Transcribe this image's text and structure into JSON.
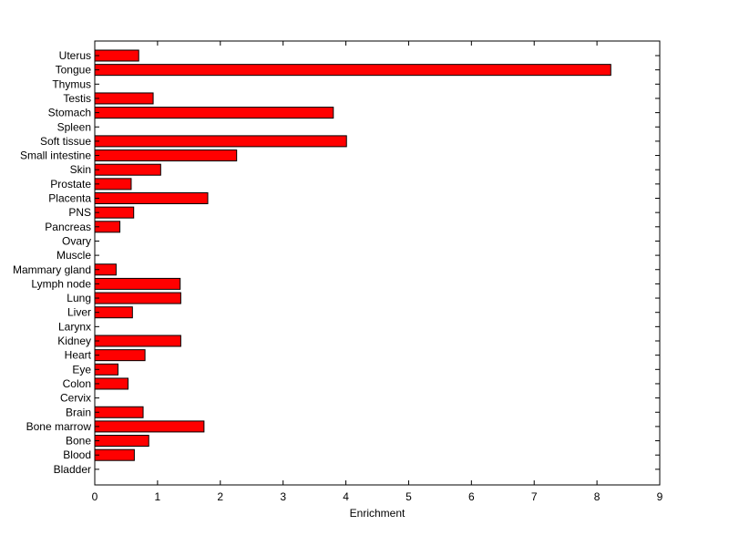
{
  "chart_data": {
    "type": "bar",
    "orientation": "horizontal",
    "title": "",
    "xlabel": "Enrichment",
    "ylabel": "",
    "xlim": [
      0,
      9
    ],
    "xticks": [
      0,
      1,
      2,
      3,
      4,
      5,
      6,
      7,
      8,
      9
    ],
    "grid": false,
    "bar_color": "#ff0000",
    "bar_edge_color": "#000000",
    "categories": [
      "Uterus",
      "Tongue",
      "Thymus",
      "Testis",
      "Stomach",
      "Spleen",
      "Soft tissue",
      "Small intestine",
      "Skin",
      "Prostate",
      "Placenta",
      "PNS",
      "Pancreas",
      "Ovary",
      "Muscle",
      "Mammary gland",
      "Lymph node",
      "Lung",
      "Liver",
      "Larynx",
      "Kidney",
      "Heart",
      "Eye",
      "Colon",
      "Cervix",
      "Brain",
      "Bone marrow",
      "Bone",
      "Blood",
      "Bladder"
    ],
    "values": [
      0.7,
      8.22,
      0,
      0.93,
      3.8,
      0,
      4.01,
      2.26,
      1.05,
      0.58,
      1.8,
      0.62,
      0.4,
      0,
      0,
      0.34,
      1.36,
      1.37,
      0.6,
      0,
      1.37,
      0.8,
      0.37,
      0.53,
      0,
      0.77,
      1.74,
      0.86,
      0.63,
      0
    ]
  }
}
